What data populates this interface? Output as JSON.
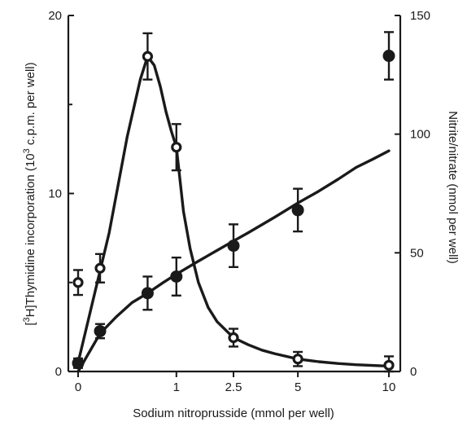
{
  "chart_data": {
    "type": "scatter",
    "title": "",
    "xlabel": "Sodium nitroprusside (mmol per well)",
    "ylabel_left_prefix": "[",
    "ylabel_left_sup1": "3",
    "ylabel_left_mid": "H]Thymidine incorporation (10",
    "ylabel_left_sup2": "3",
    "ylabel_left_suffix": " c.p.m. per well)",
    "ylabel_right": "Nitrite/nitrate (nmol per well)",
    "x_ticks": [
      0,
      1,
      2.5,
      5,
      10
    ],
    "x_tick_labels": [
      "0",
      "1",
      "2.5",
      "5",
      "10"
    ],
    "y_left_ticks": [
      0,
      10,
      20
    ],
    "y_left_tick_labels": [
      "0",
      "10",
      "20"
    ],
    "y_left_minor_ticks": [
      5,
      15
    ],
    "y_right_ticks": [
      0,
      50,
      100,
      150
    ],
    "y_right_tick_labels": [
      "0",
      "50",
      "100",
      "150"
    ],
    "ylim_left": [
      0,
      20
    ],
    "ylim_right": [
      0,
      150
    ],
    "x_scale": "square-root",
    "grid": false,
    "series": [
      {
        "marker": "open-circle",
        "axis": "left",
        "points": [
          {
            "x": 0,
            "y": 5.0,
            "err": 0.7
          },
          {
            "x": 0.05,
            "y": 5.8,
            "err": 0.8
          },
          {
            "x": 0.5,
            "y": 17.7,
            "err": 1.3
          },
          {
            "x": 1,
            "y": 12.6,
            "err": 1.3
          },
          {
            "x": 2.5,
            "y": 1.9,
            "err": 0.5
          },
          {
            "x": 5,
            "y": 0.7,
            "err": 0.4
          },
          {
            "x": 10,
            "y": 0.35,
            "err": 0.5
          }
        ],
        "curve": [
          [
            0,
            0.5
          ],
          [
            0.1,
            7.8
          ],
          [
            0.25,
            13.2
          ],
          [
            0.4,
            16.4
          ],
          [
            0.5,
            17.7
          ],
          [
            0.6,
            17.2
          ],
          [
            0.7,
            16.0
          ],
          [
            0.8,
            14.6
          ],
          [
            0.9,
            13.5
          ],
          [
            1.0,
            12.6
          ],
          [
            1.15,
            9.0
          ],
          [
            1.3,
            6.9
          ],
          [
            1.5,
            5.0
          ],
          [
            1.75,
            3.6
          ],
          [
            2.0,
            2.8
          ],
          [
            2.5,
            1.9
          ],
          [
            3.0,
            1.5
          ],
          [
            3.5,
            1.2
          ],
          [
            4.0,
            1.0
          ],
          [
            5.0,
            0.7
          ],
          [
            6.0,
            0.55
          ],
          [
            7.0,
            0.45
          ],
          [
            8.0,
            0.38
          ],
          [
            10.0,
            0.3
          ]
        ]
      },
      {
        "marker": "filled-circle",
        "axis": "right",
        "points": [
          {
            "x": 0,
            "y": 3.5,
            "err": 2
          },
          {
            "x": 0.05,
            "y": 17,
            "err": 3
          },
          {
            "x": 0.5,
            "y": 33,
            "err": 7
          },
          {
            "x": 1,
            "y": 40,
            "err": 8
          },
          {
            "x": 2.5,
            "y": 53,
            "err": 9
          },
          {
            "x": 5,
            "y": 68,
            "err": 9
          },
          {
            "x": 10,
            "y": 133,
            "err": 10
          }
        ],
        "curve": [
          [
            0,
            0
          ],
          [
            0.05,
            16
          ],
          [
            0.15,
            23
          ],
          [
            0.3,
            29
          ],
          [
            0.5,
            33
          ],
          [
            0.75,
            37.5
          ],
          [
            1.0,
            41
          ],
          [
            1.5,
            46.5
          ],
          [
            2.0,
            51
          ],
          [
            2.5,
            55
          ],
          [
            3.0,
            58.5
          ],
          [
            4.0,
            65
          ],
          [
            5.0,
            71
          ],
          [
            6.0,
            76
          ],
          [
            7.0,
            81
          ],
          [
            8.0,
            86
          ],
          [
            9.0,
            89.5
          ],
          [
            10.0,
            93
          ]
        ]
      }
    ]
  }
}
